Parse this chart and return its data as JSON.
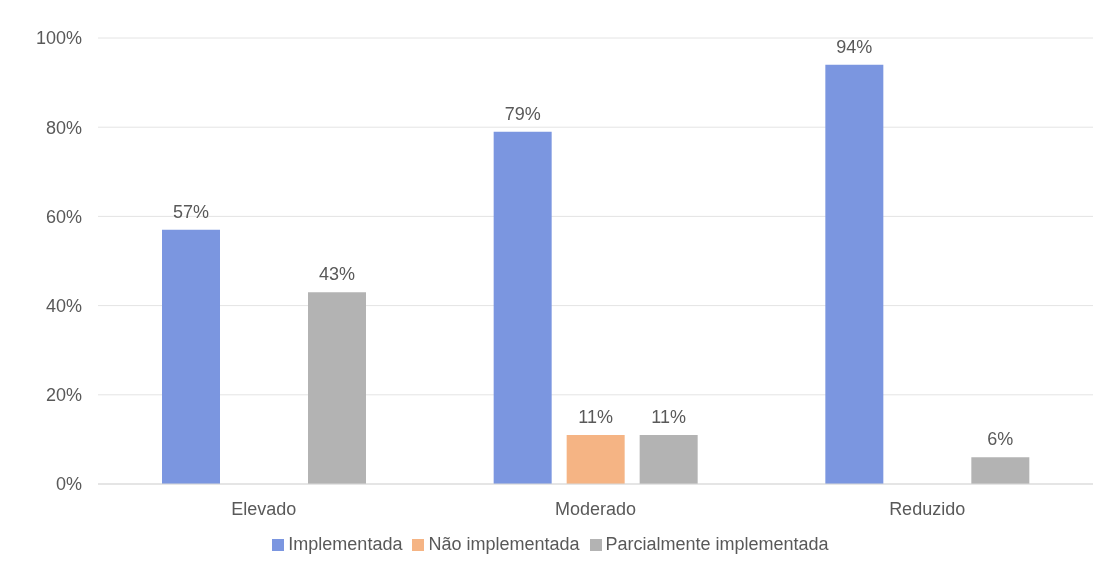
{
  "chart_data": {
    "type": "bar",
    "categories": [
      "Elevado",
      "Moderado",
      "Reduzido"
    ],
    "series": [
      {
        "name": "Implementada",
        "color": "#7b96e0",
        "values": [
          57,
          79,
          94
        ],
        "value_labels": [
          "57%",
          "79%",
          "94%"
        ]
      },
      {
        "name": "Não implementada",
        "color": "#f5b484",
        "values": [
          null,
          11,
          null
        ],
        "value_labels": [
          null,
          "11%",
          null
        ]
      },
      {
        "name": "Parcialmente implementada",
        "color": "#b3b3b3",
        "values": [
          43,
          11,
          6
        ],
        "value_labels": [
          "43%",
          "11%",
          "6%"
        ]
      }
    ],
    "ylim": [
      0,
      100
    ],
    "yticks": [
      {
        "value": 0,
        "label": "0%"
      },
      {
        "value": 20,
        "label": "20%"
      },
      {
        "value": 40,
        "label": "40%"
      },
      {
        "value": 60,
        "label": "60%"
      },
      {
        "value": 80,
        "label": "80%"
      },
      {
        "value": 100,
        "label": "100%"
      }
    ],
    "grid": "y",
    "legend": "bottom"
  }
}
